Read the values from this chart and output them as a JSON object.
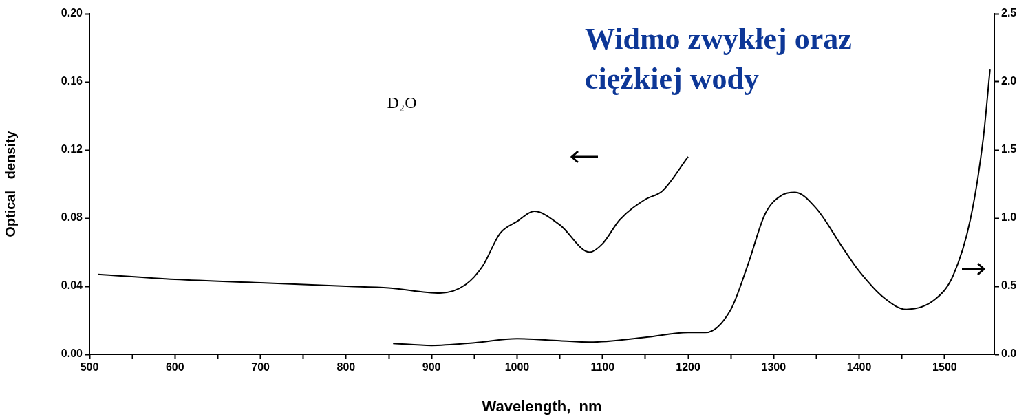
{
  "chart_data": {
    "type": "line",
    "title": "Widmo zwykłej oraz ciężkiej wody",
    "xlabel": "Wavelength,  nm",
    "ylabel": "Optical   density",
    "series": [
      {
        "name": "D₂O",
        "color": "#000000",
        "axis": "y",
        "x": [
          510,
          600,
          700,
          800,
          850,
          910,
          940,
          960,
          980,
          1000,
          1020,
          1050,
          1085,
          1100,
          1120,
          1150,
          1170,
          1200
        ],
        "values": [
          0.047,
          0.044,
          0.042,
          0.04,
          0.039,
          0.036,
          0.041,
          0.052,
          0.071,
          0.078,
          0.084,
          0.076,
          0.06,
          0.065,
          0.079,
          0.091,
          0.096,
          0.116
        ]
      },
      {
        "color": "#000000",
        "axis": "y2",
        "x": [
          855,
          900,
          950,
          1000,
          1050,
          1085,
          1150,
          1200,
          1220,
          1250,
          1270,
          1290,
          1310,
          1325,
          1350,
          1380,
          1400,
          1430,
          1455,
          1490,
          1510,
          1530,
          1545,
          1553
        ],
        "values": [
          0.08,
          0.065,
          0.085,
          0.115,
          0.1,
          0.09,
          0.125,
          0.16,
          0.16,
          0.33,
          0.66,
          1.03,
          1.17,
          1.19,
          1.07,
          0.79,
          0.61,
          0.41,
          0.33,
          0.41,
          0.58,
          0.99,
          1.58,
          2.09
        ]
      }
    ],
    "xlim": [
      500,
      1558
    ],
    "xticks": [
      500,
      {
        "value": 550,
        "label": null
      },
      600,
      {
        "value": 650,
        "label": null
      },
      700,
      {
        "value": 750,
        "label": null
      },
      800,
      {
        "value": 850,
        "label": null
      },
      900,
      {
        "value": 950,
        "label": null
      },
      1000,
      {
        "value": 1050,
        "label": null
      },
      1100,
      {
        "value": 1150,
        "label": null
      },
      1200,
      {
        "value": 1250,
        "label": null
      },
      1300,
      {
        "value": 1350,
        "label": null
      },
      1400,
      {
        "value": 1450,
        "label": null
      },
      1500
    ],
    "ylim": [
      0,
      0.2
    ],
    "yticks": [
      {
        "value": 0,
        "label": "0.00"
      },
      0.04,
      0.08,
      0.12,
      0.16,
      {
        "value": 0.2,
        "label": "0.20"
      }
    ],
    "y2lim": [
      0,
      2.5
    ],
    "y2ticks": [
      {
        "value": 0,
        "label": "0.0"
      },
      0.5,
      {
        "value": 1,
        "label": "1.0"
      },
      1.5,
      {
        "value": 2,
        "label": "2.0"
      },
      2.5
    ],
    "grid": false,
    "legend": false,
    "marker": "none",
    "line_style": "solid"
  }
}
